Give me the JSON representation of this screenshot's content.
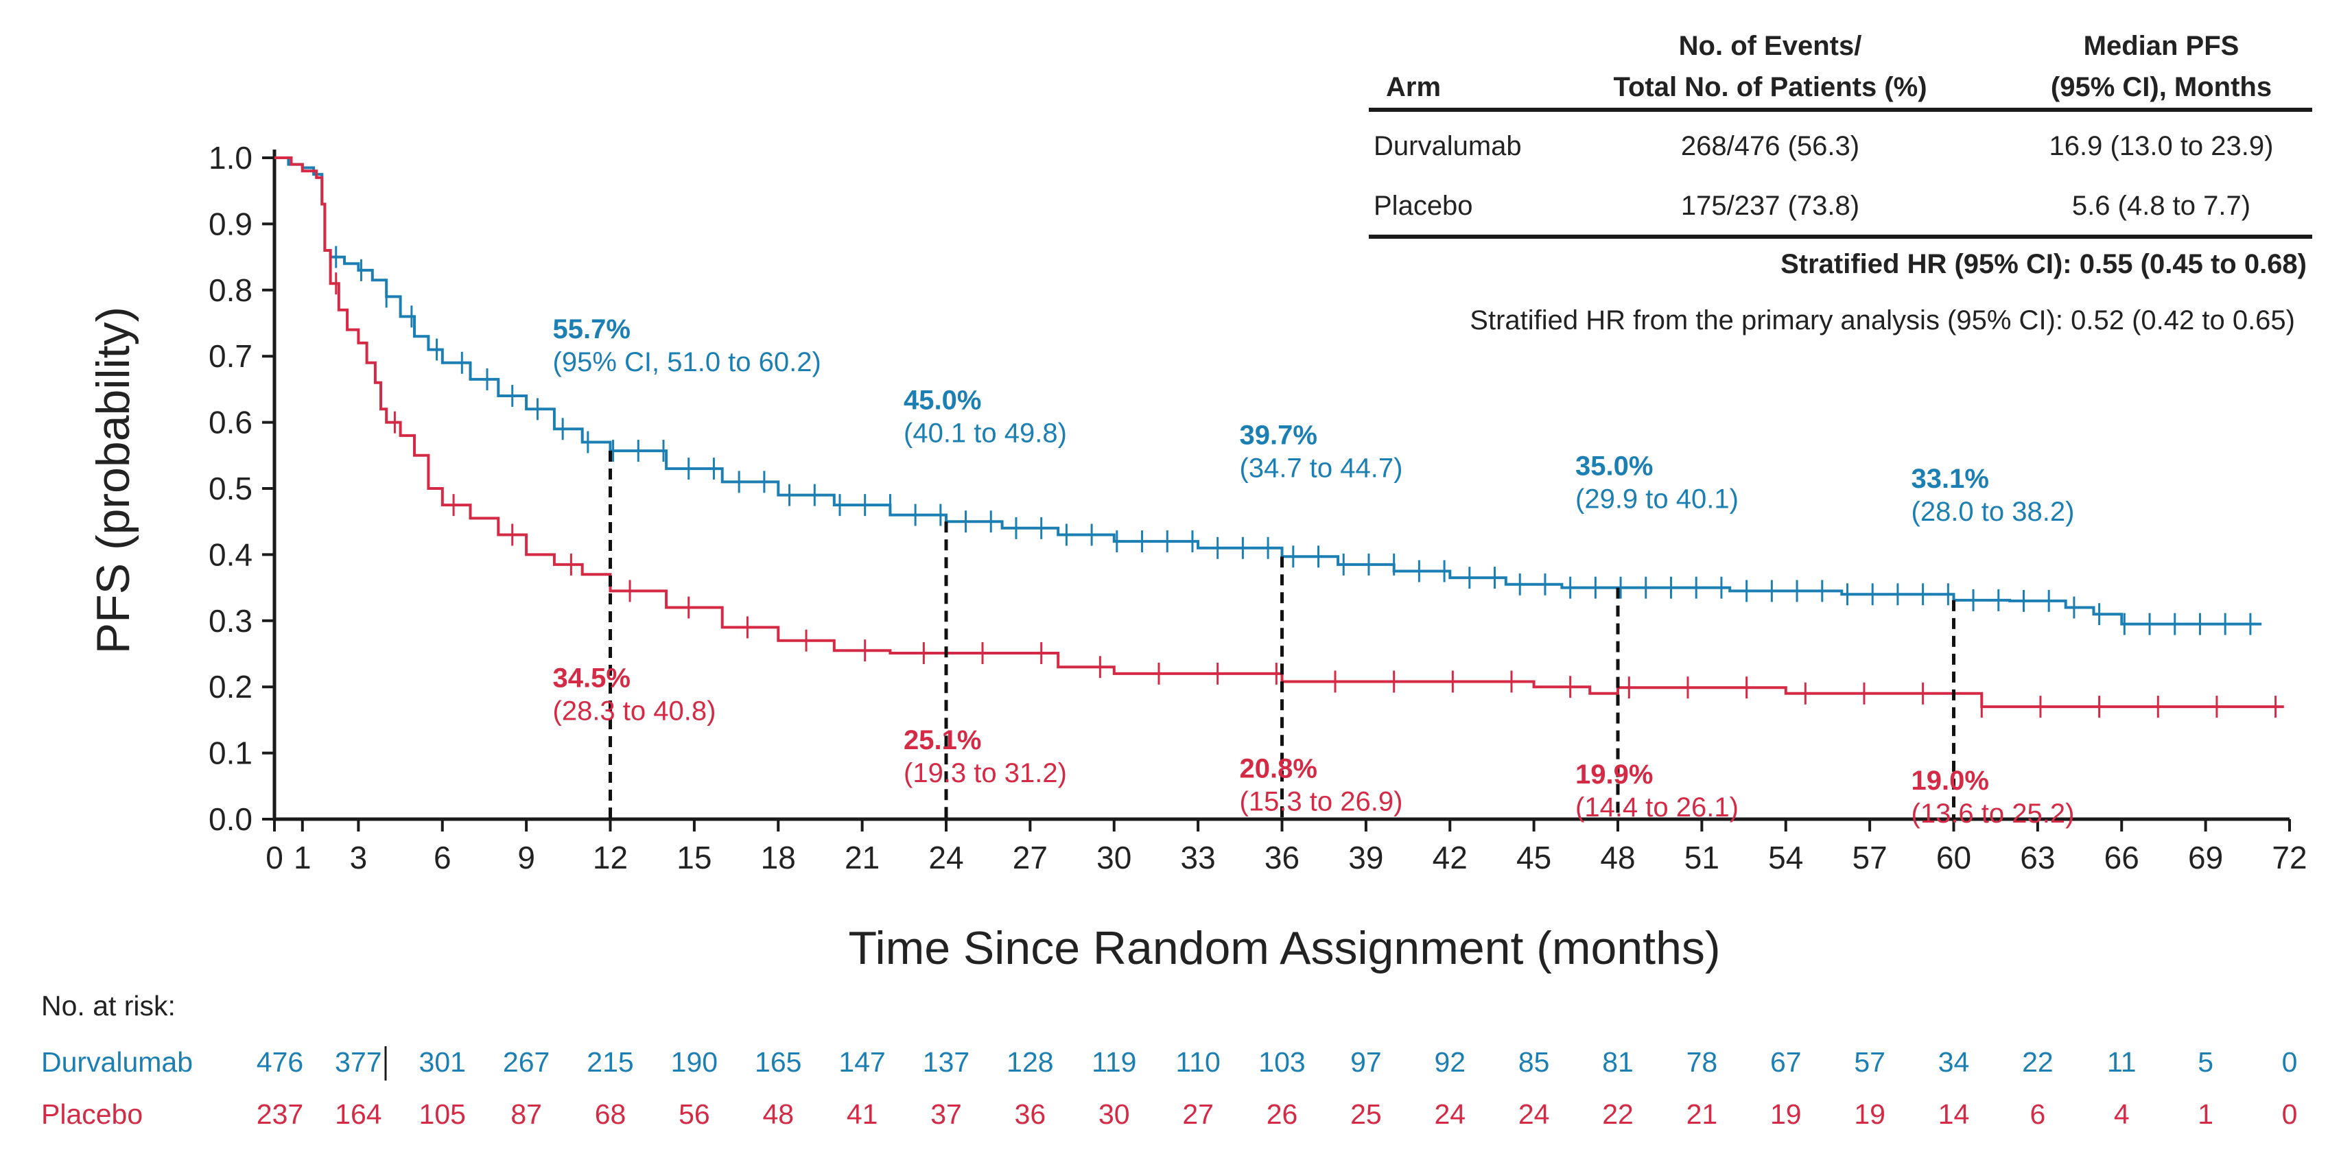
{
  "chart_data": {
    "type": "line",
    "title": "",
    "xlabel": "Time Since Random Assignment (months)",
    "ylabel": "PFS (probability)",
    "xlim": [
      0,
      72
    ],
    "ylim": [
      0,
      1.0
    ],
    "x_ticks": [
      0,
      1,
      3,
      6,
      9,
      12,
      15,
      18,
      21,
      24,
      27,
      30,
      33,
      36,
      39,
      42,
      45,
      48,
      51,
      54,
      57,
      60,
      63,
      66,
      69,
      72
    ],
    "x_tick_labels": [
      "0",
      "1",
      "3",
      "6",
      "9",
      "12",
      "15",
      "18",
      "21",
      "24",
      "27",
      "30",
      "33",
      "36",
      "39",
      "42",
      "45",
      "48",
      "51",
      "54",
      "57",
      "60",
      "63",
      "66",
      "69",
      "72"
    ],
    "y_ticks": [
      0,
      0.1,
      0.2,
      0.3,
      0.4,
      0.5,
      0.6,
      0.7,
      0.8,
      0.9,
      1.0
    ],
    "y_tick_labels": [
      "0.0",
      "0.1",
      "0.2",
      "0.3",
      "0.4",
      "0.5",
      "0.6",
      "0.7",
      "0.8",
      "0.9",
      "1.0"
    ],
    "series": [
      {
        "name": "Durvalumab",
        "color": "#1c7fb3",
        "x": [
          0,
          0.5,
          1.0,
          1.4,
          1.7,
          1.8,
          2.0,
          2.5,
          3.0,
          3.5,
          4.0,
          4.5,
          5.0,
          5.5,
          6.0,
          7.0,
          8.0,
          9.0,
          10.0,
          11.0,
          12.0,
          14.0,
          16.0,
          18.0,
          20.0,
          22.0,
          24.0,
          26.0,
          28.0,
          30.0,
          33.0,
          36.0,
          38.0,
          40.0,
          42.0,
          44.0,
          46.0,
          48.0,
          52.0,
          56.0,
          60.0,
          62.0,
          64.0,
          65.0,
          66.0,
          71.0
        ],
        "y": [
          1.0,
          0.99,
          0.985,
          0.975,
          0.93,
          0.86,
          0.85,
          0.84,
          0.83,
          0.815,
          0.79,
          0.76,
          0.73,
          0.71,
          0.69,
          0.665,
          0.64,
          0.62,
          0.59,
          0.57,
          0.557,
          0.53,
          0.51,
          0.49,
          0.475,
          0.46,
          0.45,
          0.44,
          0.43,
          0.42,
          0.41,
          0.397,
          0.385,
          0.375,
          0.365,
          0.355,
          0.35,
          0.35,
          0.345,
          0.34,
          0.331,
          0.33,
          0.32,
          0.31,
          0.295,
          0.295
        ]
      },
      {
        "name": "Placebo",
        "color": "#d42a45",
        "x": [
          0,
          0.6,
          1.0,
          1.5,
          1.7,
          1.8,
          2.0,
          2.3,
          2.6,
          3.0,
          3.3,
          3.6,
          3.8,
          4.0,
          4.5,
          5.0,
          5.5,
          6.0,
          7.0,
          8.0,
          9.0,
          10.0,
          11.0,
          12.0,
          14.0,
          16.0,
          18.0,
          20.0,
          22.0,
          24.0,
          28.0,
          30.0,
          36.0,
          45.0,
          47.0,
          48.0,
          54.0,
          60.0,
          61.0,
          71.8
        ],
        "y": [
          1.0,
          0.99,
          0.98,
          0.97,
          0.93,
          0.86,
          0.81,
          0.77,
          0.74,
          0.72,
          0.69,
          0.66,
          0.62,
          0.6,
          0.58,
          0.55,
          0.5,
          0.475,
          0.455,
          0.43,
          0.4,
          0.385,
          0.37,
          0.345,
          0.32,
          0.29,
          0.27,
          0.255,
          0.251,
          0.251,
          0.23,
          0.22,
          0.208,
          0.2,
          0.19,
          0.199,
          0.19,
          0.19,
          0.17,
          0.17
        ]
      }
    ],
    "annotations": [
      {
        "series": "Durvalumab",
        "x": 12,
        "y": 0.557,
        "value": "55.7%",
        "ci": "(95% CI, 51.0 to 60.2)"
      },
      {
        "series": "Durvalumab",
        "x": 24,
        "y": 0.45,
        "value": "45.0%",
        "ci": "(40.1 to 49.8)"
      },
      {
        "series": "Durvalumab",
        "x": 36,
        "y": 0.397,
        "value": "39.7%",
        "ci": "(34.7 to 44.7)"
      },
      {
        "series": "Durvalumab",
        "x": 48,
        "y": 0.35,
        "value": "35.0%",
        "ci": "(29.9 to 40.1)"
      },
      {
        "series": "Durvalumab",
        "x": 60,
        "y": 0.331,
        "value": "33.1%",
        "ci": "(28.0 to 38.2)"
      },
      {
        "series": "Placebo",
        "x": 12,
        "y": 0.345,
        "value": "34.5%",
        "ci": "(28.3 to 40.8)"
      },
      {
        "series": "Placebo",
        "x": 24,
        "y": 0.251,
        "value": "25.1%",
        "ci": "(19.3 to 31.2)"
      },
      {
        "series": "Placebo",
        "x": 36,
        "y": 0.208,
        "value": "20.8%",
        "ci": "(15.3 to 26.9)"
      },
      {
        "series": "Placebo",
        "x": 48,
        "y": 0.199,
        "value": "19.9%",
        "ci": "(14.4 to 26.1)"
      },
      {
        "series": "Placebo",
        "x": 60,
        "y": 0.19,
        "value": "19.0%",
        "ci": "(13.6 to 25.2)"
      }
    ],
    "legend_table": {
      "headers": [
        "Arm",
        "No. of Events/",
        "Total No. of Patients (%)",
        "Median PFS",
        "(95% CI), Months"
      ],
      "rows": [
        {
          "arm": "Durvalumab",
          "events": "268/476 (56.3)",
          "median": "16.9 (13.0 to 23.9)"
        },
        {
          "arm": "Placebo",
          "events": "175/237 (73.8)",
          "median": "5.6 (4.8 to 7.7)"
        }
      ],
      "hr_stratified": "Stratified HR (95% CI): 0.55 (0.45 to 0.68)",
      "hr_primary": "Stratified HR from the primary analysis (95% CI): 0.52 (0.42 to 0.65)"
    },
    "at_risk": {
      "label": "No. at risk:",
      "times": [
        0,
        3,
        6,
        9,
        12,
        15,
        18,
        21,
        24,
        27,
        30,
        33,
        36,
        39,
        42,
        45,
        48,
        51,
        54,
        57,
        60,
        63,
        66,
        69,
        72
      ],
      "rows": [
        {
          "name": "Durvalumab",
          "values": [
            "476",
            "377",
            "301",
            "267",
            "215",
            "190",
            "165",
            "147",
            "137",
            "128",
            "119",
            "110",
            "103",
            "97",
            "92",
            "85",
            "81",
            "78",
            "67",
            "57",
            "34",
            "22",
            "11",
            "5",
            "0"
          ]
        },
        {
          "name": "Placebo",
          "values": [
            "237",
            "164",
            "105",
            "87",
            "68",
            "56",
            "48",
            "41",
            "37",
            "36",
            "30",
            "27",
            "26",
            "25",
            "24",
            "24",
            "22",
            "21",
            "19",
            "19",
            "14",
            "6",
            "4",
            "1",
            "0"
          ]
        }
      ]
    }
  }
}
